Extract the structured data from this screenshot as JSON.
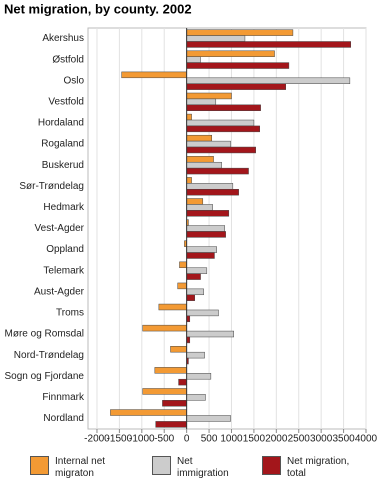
{
  "chart_data": {
    "type": "hbar",
    "title": "Net migration, by county. 2002",
    "categories": [
      "Akershus",
      "Østfold",
      "Oslo",
      "Vestfold",
      "Hordaland",
      "Rogaland",
      "Buskerud",
      "Sør-Trøndelag",
      "Hedmark",
      "Vest-Agder",
      "Oppland",
      "Telemark",
      "Aust-Agder",
      "Troms",
      "Møre og Romsdal",
      "Nord-Trøndelag",
      "Sogn og Fjordane",
      "Finnmark",
      "Nordland"
    ],
    "series": [
      {
        "name": "Internal net migraton",
        "color": "#f39a34",
        "values": [
          2370,
          1960,
          -1450,
          1000,
          110,
          560,
          600,
          110,
          360,
          40,
          -50,
          -160,
          -200,
          -620,
          -980,
          -360,
          -710,
          -980,
          -1700
        ]
      },
      {
        "name": "Net immigration",
        "color": "#cccccc",
        "values": [
          1300,
          310,
          3640,
          650,
          1500,
          980,
          780,
          1030,
          580,
          850,
          670,
          450,
          380,
          710,
          1050,
          400,
          540,
          420,
          980
        ]
      },
      {
        "name": "Net migration, total",
        "color": "#a3161b",
        "values": [
          3660,
          2280,
          2210,
          1650,
          1630,
          1540,
          1380,
          1160,
          940,
          870,
          620,
          310,
          180,
          70,
          70,
          40,
          -180,
          -540,
          -690
        ]
      }
    ],
    "xlim": [
      -2200,
      4000
    ],
    "xticks": [
      -2000,
      -1500,
      -1000,
      -500,
      0,
      500,
      1000,
      1500,
      2000,
      2500,
      3000,
      3500,
      4000
    ],
    "grid": true
  }
}
